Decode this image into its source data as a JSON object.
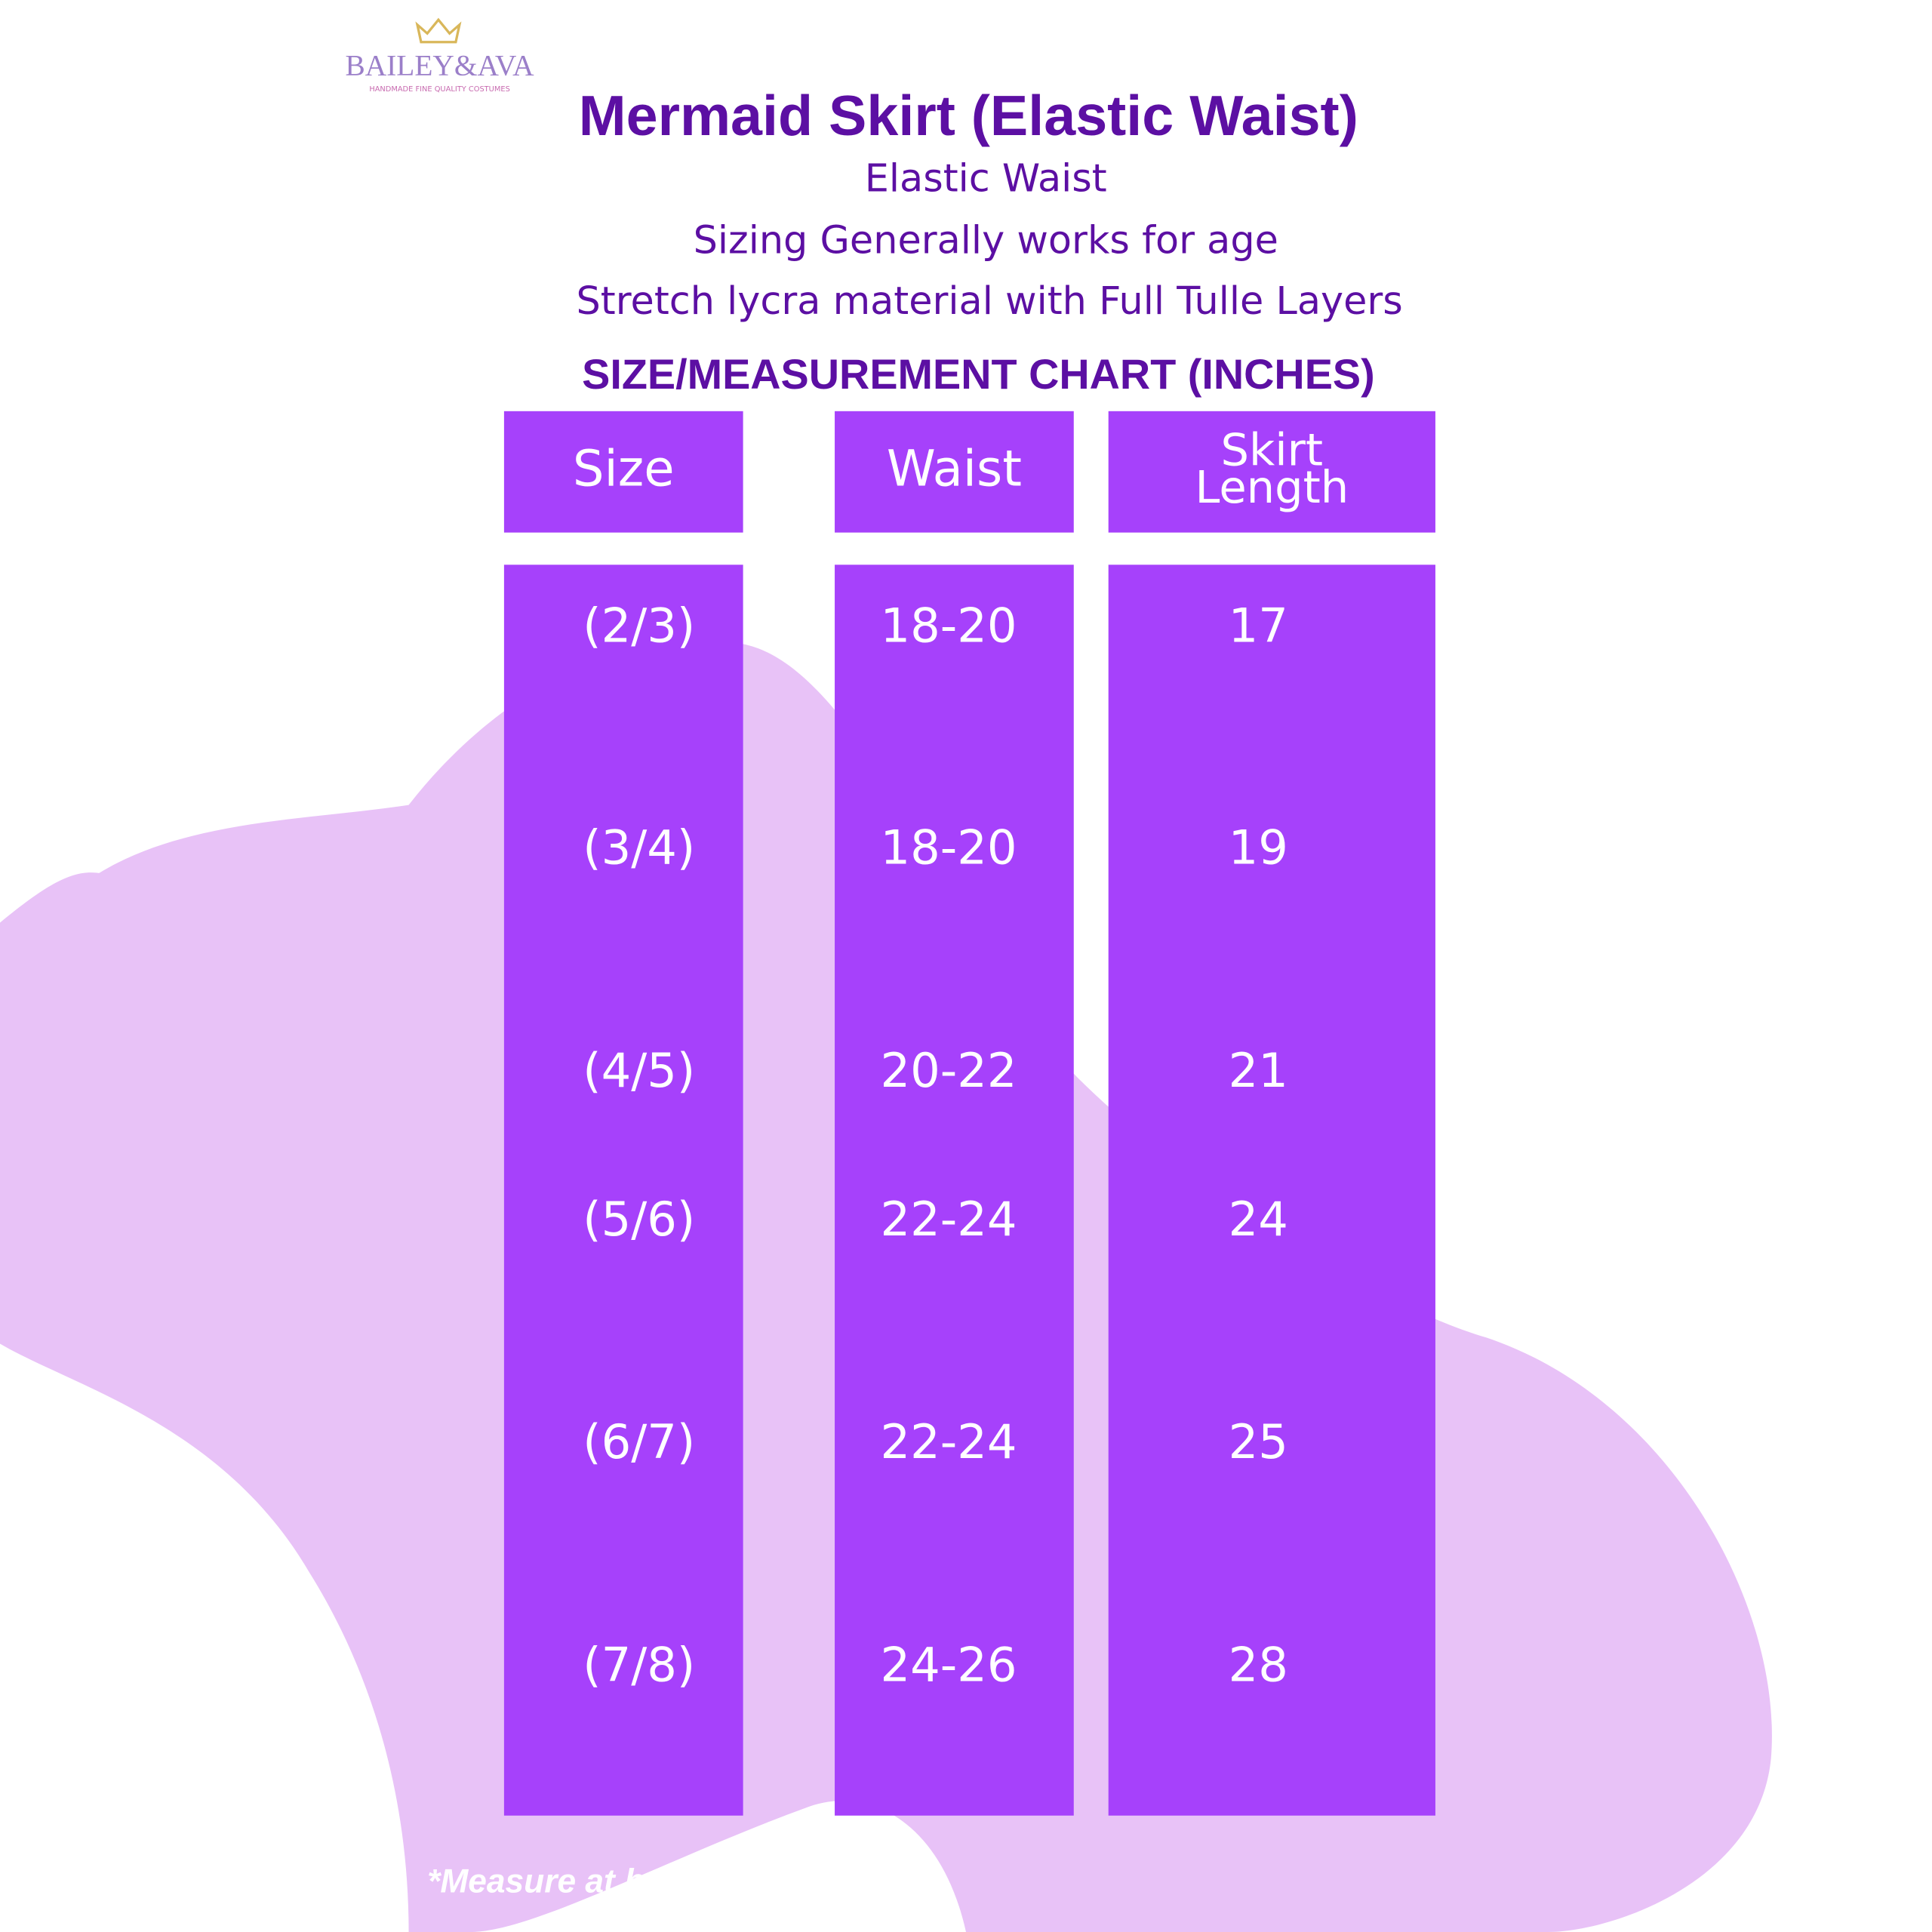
{
  "logo": {
    "brand": "BAILEY&AVA",
    "tagline": "HANDMADE FINE QUALITY COSTUMES"
  },
  "header": {
    "title": "Mermaid Skirt (Elastic Waist)",
    "lines": [
      "Elastic Waist",
      "Sizing Generally works for age",
      "Stretch lycra material with Full Tulle Layers"
    ]
  },
  "table": {
    "title": "SIZE/MEASUREMENT CHART (INCHES)",
    "columns": [
      "Size",
      "Waist",
      "Skirt Length"
    ],
    "rows": [
      [
        "(2/3)",
        "18-20",
        "17"
      ],
      [
        "(3/4)",
        "18-20",
        "19"
      ],
      [
        "(4/5)",
        "20-22",
        "21"
      ],
      [
        "(5/6)",
        "22-24",
        "24"
      ],
      [
        "(6/7)",
        "22-24",
        "25"
      ],
      [
        "(7/8)",
        "24-26",
        "28"
      ]
    ]
  },
  "footnote": "*Measure at belly button leve"
}
